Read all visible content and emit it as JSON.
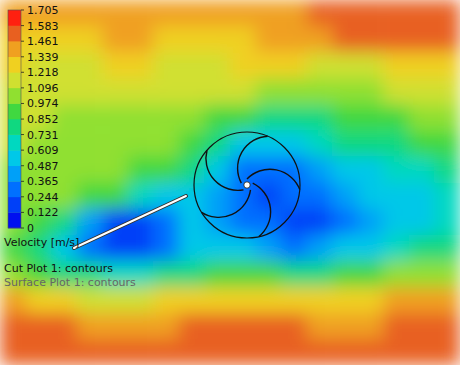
{
  "chart_data": {
    "type": "contour",
    "colorbar_label": "Velocity [m/s]",
    "annotations": [
      "Cut Plot 1: contours",
      "Surface Plot 1: contours"
    ],
    "colorbar_range": [
      0,
      1.705
    ],
    "colorbar_ticks": [
      1.705,
      1.583,
      1.461,
      1.339,
      1.218,
      1.096,
      0.974,
      0.852,
      0.731,
      0.609,
      0.487,
      0.365,
      0.244,
      0.122,
      0
    ],
    "cells": [
      [
        1.45,
        1.45,
        1.45,
        1.4,
        1.4,
        1.4,
        1.35,
        1.35,
        1.35,
        1.35,
        1.35,
        1.4,
        1.5,
        1.55,
        1.55,
        1.55,
        1.55,
        1.55
      ],
      [
        1.3,
        1.3,
        1.3,
        1.3,
        1.35,
        1.35,
        1.3,
        1.3,
        1.3,
        1.3,
        1.35,
        1.4,
        1.45,
        1.5,
        1.5,
        1.5,
        1.5,
        1.5
      ],
      [
        1.25,
        1.2,
        1.2,
        1.2,
        1.25,
        1.25,
        1.2,
        1.2,
        1.2,
        1.25,
        1.25,
        1.3,
        1.2,
        1.15,
        1.2,
        1.25,
        1.3,
        1.3
      ],
      [
        1.15,
        1.1,
        1.1,
        1.1,
        1.1,
        1.1,
        1.1,
        1.1,
        1.1,
        1.1,
        1.05,
        1.05,
        1.0,
        1.05,
        1.05,
        1.1,
        1.1,
        1.15
      ],
      [
        1.1,
        1.1,
        1.05,
        1.05,
        1.05,
        1.05,
        1.05,
        1.0,
        0.95,
        0.9,
        0.85,
        0.8,
        0.85,
        0.9,
        0.9,
        0.95,
        1.0,
        1.0
      ],
      [
        1.1,
        1.05,
        1.05,
        1.05,
        1.0,
        1.0,
        1.0,
        0.9,
        0.75,
        0.6,
        0.5,
        0.55,
        0.65,
        0.75,
        0.8,
        0.85,
        0.9,
        0.95
      ],
      [
        1.05,
        1.05,
        1.0,
        1.0,
        1.0,
        0.95,
        0.9,
        0.8,
        0.5,
        0.35,
        0.3,
        0.35,
        0.45,
        0.55,
        0.6,
        0.65,
        0.7,
        0.8
      ],
      [
        1.05,
        1.0,
        1.0,
        0.95,
        0.9,
        0.7,
        0.6,
        0.6,
        0.4,
        0.3,
        0.2,
        0.25,
        0.3,
        0.4,
        0.5,
        0.55,
        0.6,
        0.7
      ],
      [
        1.0,
        0.9,
        0.8,
        0.4,
        0.15,
        0.2,
        0.3,
        0.5,
        0.45,
        0.3,
        0.25,
        0.2,
        0.2,
        0.3,
        0.45,
        0.5,
        0.55,
        0.65
      ],
      [
        0.95,
        0.8,
        0.6,
        0.3,
        0.15,
        0.2,
        0.3,
        0.55,
        0.6,
        0.55,
        0.45,
        0.35,
        0.4,
        0.5,
        0.6,
        0.7,
        0.75,
        0.8
      ],
      [
        1.05,
        0.95,
        0.85,
        0.75,
        0.7,
        0.7,
        0.75,
        0.85,
        0.95,
        0.95,
        0.9,
        0.85,
        0.85,
        0.9,
        0.95,
        1.0,
        1.05,
        1.05
      ],
      [
        1.35,
        1.3,
        1.25,
        1.2,
        1.2,
        1.2,
        1.25,
        1.3,
        1.3,
        1.3,
        1.3,
        1.25,
        1.25,
        1.3,
        1.3,
        1.35,
        1.35,
        1.35
      ],
      [
        1.5,
        1.5,
        1.5,
        1.45,
        1.45,
        1.45,
        1.45,
        1.5,
        1.5,
        1.5,
        1.5,
        1.5,
        1.45,
        1.45,
        1.45,
        1.5,
        1.5,
        1.5
      ],
      [
        1.5,
        1.5,
        1.5,
        1.5,
        1.5,
        1.5,
        1.5,
        1.5,
        1.5,
        1.5,
        1.5,
        1.5,
        1.5,
        1.5,
        1.5,
        1.5,
        1.5,
        1.5
      ]
    ]
  }
}
